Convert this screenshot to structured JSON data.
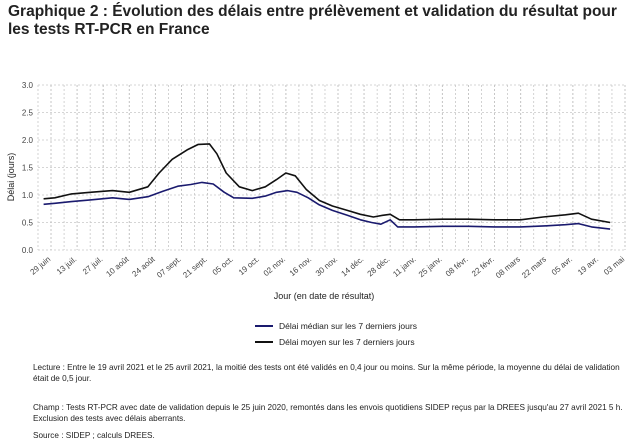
{
  "page": {
    "title": "Graphique 2 : Évolution des délais entre prélèvement et validation du résultat pour les tests RT-PCR en France",
    "lecture": "Lecture : Entre le 19 avril 2021 et le 25 avril 2021, la moitié des tests ont été validés en 0,4 jour ou moins. Sur la même période, la moyenne du délai de validation était de 0,5 jour.",
    "champ": "Champ : Tests RT-PCR avec date de validation depuis le 25 juin 2020, remontés dans les envois quotidiens SIDEP reçus par la DREES jusqu'au 27 avril 2021 5 h. Exclusion des tests avec délais aberrants.",
    "source": "Source : SIDEP ; calculs DREES."
  },
  "chart_data": {
    "type": "line",
    "title": "Graphique 2 : Évolution des délais entre prélèvement et validation du résultat pour les tests RT-PCR en France",
    "xlabel": "Jour (en date de résultat)",
    "ylabel": "Délai (jours)",
    "x_type": "date",
    "xlim": [
      "2020-06-22",
      "2021-05-03"
    ],
    "ylim": [
      0,
      3
    ],
    "grid": true,
    "legend_position": "bottom",
    "x_tick_dates": [
      "2020-06-29",
      "2020-07-13",
      "2020-07-27",
      "2020-08-10",
      "2020-08-24",
      "2020-09-07",
      "2020-09-21",
      "2020-10-05",
      "2020-10-19",
      "2020-11-02",
      "2020-11-16",
      "2020-11-30",
      "2020-12-14",
      "2020-12-28",
      "2021-01-11",
      "2021-01-25",
      "2021-02-08",
      "2021-02-22",
      "2021-03-08",
      "2021-03-22",
      "2021-04-05",
      "2021-04-19",
      "2021-05-03"
    ],
    "x_tick_labels": [
      "29 juin",
      "13 juil.",
      "27 juil.",
      "10 août",
      "24 août",
      "07 sept.",
      "21 sept.",
      "05 oct.",
      "19 oct.",
      "02 nov.",
      "16 nov.",
      "30 nov.",
      "14 déc.",
      "28 déc.",
      "11 janv.",
      "25 janv.",
      "08 févr.",
      "22 févr.",
      "08 mars",
      "22 mars",
      "05 avr.",
      "19 avr.",
      "03 mai"
    ],
    "y_tick_labels": [
      "0.0",
      "0.5",
      "1.0",
      "1.5",
      "2.0",
      "2.5",
      "3.0"
    ],
    "y_ticks": [
      0,
      0.5,
      1.0,
      1.5,
      2.0,
      2.5,
      3.0
    ],
    "series": [
      {
        "name": "Délai médian sur les 7 derniers jours",
        "color": "#1a1a6e",
        "points": [
          [
            "2020-06-25",
            0.83
          ],
          [
            "2020-07-01",
            0.85
          ],
          [
            "2020-07-10",
            0.88
          ],
          [
            "2020-07-20",
            0.91
          ],
          [
            "2020-08-01",
            0.95
          ],
          [
            "2020-08-10",
            0.92
          ],
          [
            "2020-08-20",
            0.97
          ],
          [
            "2020-08-28",
            1.07
          ],
          [
            "2020-09-05",
            1.16
          ],
          [
            "2020-09-12",
            1.19
          ],
          [
            "2020-09-18",
            1.23
          ],
          [
            "2020-09-24",
            1.2
          ],
          [
            "2020-09-30",
            1.05
          ],
          [
            "2020-10-05",
            0.95
          ],
          [
            "2020-10-15",
            0.94
          ],
          [
            "2020-10-22",
            0.98
          ],
          [
            "2020-10-28",
            1.05
          ],
          [
            "2020-11-03",
            1.08
          ],
          [
            "2020-11-08",
            1.05
          ],
          [
            "2020-11-14",
            0.95
          ],
          [
            "2020-11-20",
            0.82
          ],
          [
            "2020-11-27",
            0.72
          ],
          [
            "2020-12-05",
            0.63
          ],
          [
            "2020-12-12",
            0.55
          ],
          [
            "2020-12-18",
            0.5
          ],
          [
            "2020-12-23",
            0.47
          ],
          [
            "2020-12-28",
            0.55
          ],
          [
            "2021-01-01",
            0.42
          ],
          [
            "2021-01-10",
            0.42
          ],
          [
            "2021-01-25",
            0.43
          ],
          [
            "2021-02-08",
            0.43
          ],
          [
            "2021-02-22",
            0.42
          ],
          [
            "2021-03-08",
            0.42
          ],
          [
            "2021-03-22",
            0.44
          ],
          [
            "2021-04-01",
            0.46
          ],
          [
            "2021-04-08",
            0.48
          ],
          [
            "2021-04-15",
            0.42
          ],
          [
            "2021-04-25",
            0.38
          ]
        ]
      },
      {
        "name": "Délai moyen sur les 7 derniers jours",
        "color": "#111111",
        "points": [
          [
            "2020-06-25",
            0.93
          ],
          [
            "2020-07-01",
            0.95
          ],
          [
            "2020-07-10",
            1.02
          ],
          [
            "2020-07-20",
            1.05
          ],
          [
            "2020-08-01",
            1.08
          ],
          [
            "2020-08-10",
            1.05
          ],
          [
            "2020-08-20",
            1.15
          ],
          [
            "2020-08-26",
            1.4
          ],
          [
            "2020-09-02",
            1.65
          ],
          [
            "2020-09-10",
            1.82
          ],
          [
            "2020-09-16",
            1.92
          ],
          [
            "2020-09-22",
            1.93
          ],
          [
            "2020-09-26",
            1.75
          ],
          [
            "2020-10-01",
            1.4
          ],
          [
            "2020-10-08",
            1.15
          ],
          [
            "2020-10-15",
            1.08
          ],
          [
            "2020-10-22",
            1.15
          ],
          [
            "2020-10-28",
            1.28
          ],
          [
            "2020-11-02",
            1.4
          ],
          [
            "2020-11-07",
            1.35
          ],
          [
            "2020-11-13",
            1.1
          ],
          [
            "2020-11-20",
            0.9
          ],
          [
            "2020-11-27",
            0.8
          ],
          [
            "2020-12-05",
            0.72
          ],
          [
            "2020-12-12",
            0.65
          ],
          [
            "2020-12-19",
            0.6
          ],
          [
            "2020-12-24",
            0.63
          ],
          [
            "2020-12-28",
            0.65
          ],
          [
            "2021-01-02",
            0.55
          ],
          [
            "2021-01-10",
            0.55
          ],
          [
            "2021-01-25",
            0.56
          ],
          [
            "2021-02-08",
            0.56
          ],
          [
            "2021-02-22",
            0.55
          ],
          [
            "2021-03-08",
            0.55
          ],
          [
            "2021-03-20",
            0.6
          ],
          [
            "2021-04-01",
            0.64
          ],
          [
            "2021-04-08",
            0.67
          ],
          [
            "2021-04-15",
            0.56
          ],
          [
            "2021-04-25",
            0.5
          ]
        ]
      }
    ]
  }
}
